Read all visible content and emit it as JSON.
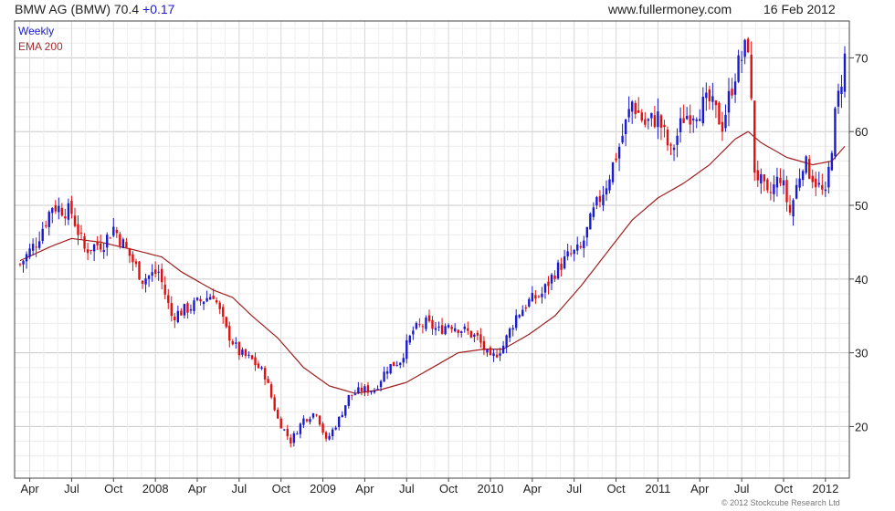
{
  "header": {
    "title": "BMW AG (BMW) 70.4",
    "change": "+0.17",
    "source": "www.fullermoney.com",
    "date": "16 Feb 2012"
  },
  "legend": {
    "series1": "Weekly",
    "series2": "EMA 200"
  },
  "copyright": "© 2012 Stockcube Research Ltd",
  "colors": {
    "up": "#1a1ad0",
    "down": "#e01010",
    "ema": "#a02020",
    "grid": "#d6d6d6",
    "frame": "#444444"
  },
  "chart_data": {
    "type": "candlestick",
    "ylim": [
      13,
      75
    ],
    "xlim": [
      0,
      244
    ],
    "y_ticks": [
      20,
      30,
      40,
      50,
      60,
      70
    ],
    "y_axis_side": "right",
    "x_ticks": [
      {
        "label": "Apr",
        "pos": 3
      },
      {
        "label": "Jul",
        "pos": 16
      },
      {
        "label": "Oct",
        "pos": 29
      },
      {
        "label": "2008",
        "pos": 42
      },
      {
        "label": "Apr",
        "pos": 55
      },
      {
        "label": "Jul",
        "pos": 68
      },
      {
        "label": "Oct",
        "pos": 81
      },
      {
        "label": "2009",
        "pos": 94
      },
      {
        "label": "Apr",
        "pos": 107
      },
      {
        "label": "Jul",
        "pos": 120
      },
      {
        "label": "Oct",
        "pos": 133
      },
      {
        "label": "2010",
        "pos": 146
      },
      {
        "label": "Apr",
        "pos": 159
      },
      {
        "label": "Jul",
        "pos": 172
      },
      {
        "label": "Oct",
        "pos": 185
      },
      {
        "label": "2011",
        "pos": 198
      },
      {
        "label": "Apr",
        "pos": 211
      },
      {
        "label": "Jul",
        "pos": 224
      },
      {
        "label": "Oct",
        "pos": 237
      },
      {
        "label": "2012",
        "pos": 250
      }
    ],
    "close_anchors": [
      [
        0,
        42
      ],
      [
        5,
        45
      ],
      [
        10,
        50
      ],
      [
        16,
        49
      ],
      [
        20,
        44
      ],
      [
        26,
        45
      ],
      [
        29,
        47
      ],
      [
        33,
        44
      ],
      [
        38,
        40
      ],
      [
        43,
        41
      ],
      [
        47,
        35
      ],
      [
        52,
        36
      ],
      [
        56,
        37
      ],
      [
        60,
        38
      ],
      [
        64,
        33
      ],
      [
        68,
        30
      ],
      [
        72,
        29
      ],
      [
        76,
        27
      ],
      [
        80,
        21
      ],
      [
        84,
        18
      ],
      [
        88,
        21
      ],
      [
        92,
        22
      ],
      [
        95,
        18
      ],
      [
        99,
        21
      ],
      [
        102,
        24
      ],
      [
        106,
        25
      ],
      [
        110,
        25
      ],
      [
        114,
        28
      ],
      [
        118,
        29
      ],
      [
        122,
        33
      ],
      [
        126,
        34
      ],
      [
        130,
        33
      ],
      [
        133,
        34
      ],
      [
        138,
        33
      ],
      [
        142,
        32
      ],
      [
        146,
        29
      ],
      [
        150,
        31
      ],
      [
        154,
        35
      ],
      [
        158,
        37
      ],
      [
        162,
        38
      ],
      [
        166,
        41
      ],
      [
        170,
        43
      ],
      [
        174,
        44
      ],
      [
        178,
        49
      ],
      [
        182,
        53
      ],
      [
        186,
        58
      ],
      [
        190,
        64
      ],
      [
        194,
        61
      ],
      [
        198,
        62
      ],
      [
        202,
        57
      ],
      [
        206,
        62
      ],
      [
        210,
        63
      ],
      [
        214,
        64
      ],
      [
        218,
        61
      ],
      [
        222,
        68
      ],
      [
        226,
        72
      ],
      [
        228,
        55
      ],
      [
        232,
        51
      ],
      [
        236,
        54
      ],
      [
        239,
        49
      ],
      [
        243,
        56
      ],
      [
        246,
        54
      ],
      [
        250,
        51
      ],
      [
        253,
        62
      ],
      [
        256,
        70
      ]
    ],
    "ema_anchors": [
      [
        0,
        42.5
      ],
      [
        10,
        44.5
      ],
      [
        16,
        45.5
      ],
      [
        25,
        45
      ],
      [
        35,
        44
      ],
      [
        44,
        43
      ],
      [
        50,
        41
      ],
      [
        60,
        38.5
      ],
      [
        66,
        37.5
      ],
      [
        72,
        35
      ],
      [
        80,
        32
      ],
      [
        88,
        28
      ],
      [
        96,
        25.5
      ],
      [
        104,
        24.5
      ],
      [
        112,
        25
      ],
      [
        120,
        26
      ],
      [
        128,
        28
      ],
      [
        136,
        30
      ],
      [
        144,
        30.5
      ],
      [
        150,
        30.5
      ],
      [
        158,
        32.5
      ],
      [
        166,
        35
      ],
      [
        174,
        39
      ],
      [
        182,
        43.5
      ],
      [
        190,
        48
      ],
      [
        198,
        51
      ],
      [
        206,
        53
      ],
      [
        214,
        55.5
      ],
      [
        222,
        59
      ],
      [
        226,
        60
      ],
      [
        230,
        58.5
      ],
      [
        238,
        56.5
      ],
      [
        246,
        55.5
      ],
      [
        252,
        56
      ],
      [
        256,
        58
      ]
    ]
  }
}
